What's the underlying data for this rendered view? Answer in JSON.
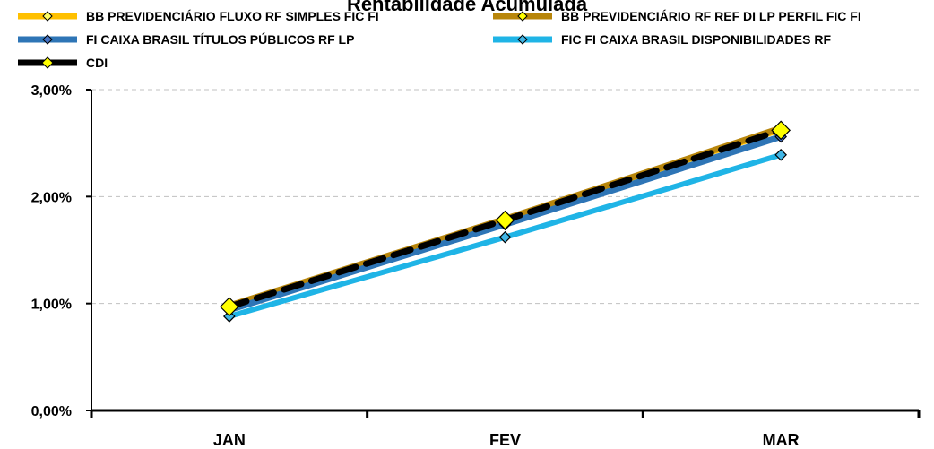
{
  "chart_data": {
    "type": "line",
    "title": "Rentabilidade Acumulada",
    "categories": [
      "JAN",
      "FEV",
      "MAR"
    ],
    "ylim": [
      0,
      3
    ],
    "yticks": [
      "0,00%",
      "1,00%",
      "2,00%",
      "3,00%"
    ],
    "grid": true,
    "legend_position": "top",
    "series": [
      {
        "name": "BB PREVIDENCIÁRIO FLUXO RF SIMPLES FIC FI",
        "values": [
          0.96,
          1.78,
          2.62
        ],
        "color": "#FFC000",
        "marker_color": "#FFFF66",
        "marker": "diamond",
        "style": "solid"
      },
      {
        "name": "BB PREVIDENCIÁRIO RF REF DI LP PERFIL FIC FI",
        "values": [
          0.98,
          1.79,
          2.64
        ],
        "color": "#B8860B",
        "marker_color": "#FFFF00",
        "marker": "diamond",
        "style": "solid"
      },
      {
        "name": "FI CAIXA BRASIL TÍTULOS PÚBLICOS RF LP",
        "values": [
          0.94,
          1.74,
          2.56
        ],
        "color": "#2E75B6",
        "marker_color": "#4472C4",
        "marker": "diamond",
        "style": "solid"
      },
      {
        "name": "FIC FI CAIXA BRASIL DISPONIBILIDADES RF",
        "values": [
          0.88,
          1.62,
          2.39
        ],
        "color": "#1FB4E6",
        "marker_color": "#41B6E6",
        "marker": "diamond",
        "style": "solid"
      },
      {
        "name": "CDI",
        "values": [
          0.97,
          1.78,
          2.62
        ],
        "color": "#000000",
        "marker_color": "#FFFF00",
        "marker": "diamond",
        "style": "dashed"
      }
    ]
  }
}
